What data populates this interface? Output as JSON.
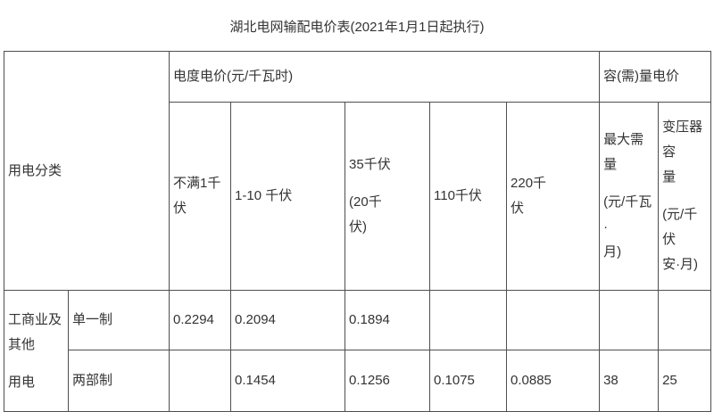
{
  "title": "湖北电网输配电价表(2021年1月1日起执行)",
  "colors": {
    "border": "#4f4f4f",
    "text": "#333333",
    "background": "#ffffff"
  },
  "table": {
    "usage_category_paras": [
      "用电分类"
    ],
    "energy_group_paras": [
      "电度电价(元/千瓦时)"
    ],
    "capacity_group_paras": [
      "容(需)量电价"
    ],
    "columns": [
      {
        "name": "under-1kv",
        "paras": [
          "不满1千\n伏"
        ]
      },
      {
        "name": "1-10kv",
        "paras": [
          "1-10 千伏"
        ]
      },
      {
        "name": "35kv-20kv",
        "paras": [
          "35千伏",
          "(20千\n伏)"
        ]
      },
      {
        "name": "110kv",
        "paras": [
          "110千伏"
        ]
      },
      {
        "name": "220kv",
        "paras": [
          "220千\n伏"
        ]
      },
      {
        "name": "max-demand",
        "paras": [
          "最大需\n量",
          "(元/千瓦·\n月)"
        ]
      },
      {
        "name": "transformer-capacity",
        "paras": [
          "变压器容\n量",
          "(元/千伏\n安·月)"
        ]
      }
    ],
    "rows": [
      {
        "category_paras": [
          "工商业及\n其他",
          "用电"
        ],
        "label_paras": [
          "单一制"
        ],
        "values": [
          "0.2294",
          "0.2094",
          "0.1894",
          "",
          "",
          "",
          ""
        ]
      },
      {
        "label_paras": [
          "两部制"
        ],
        "values": [
          "",
          "0.1454",
          "0.1256",
          "0.1075",
          "0.0885",
          "38",
          "25"
        ]
      }
    ]
  }
}
